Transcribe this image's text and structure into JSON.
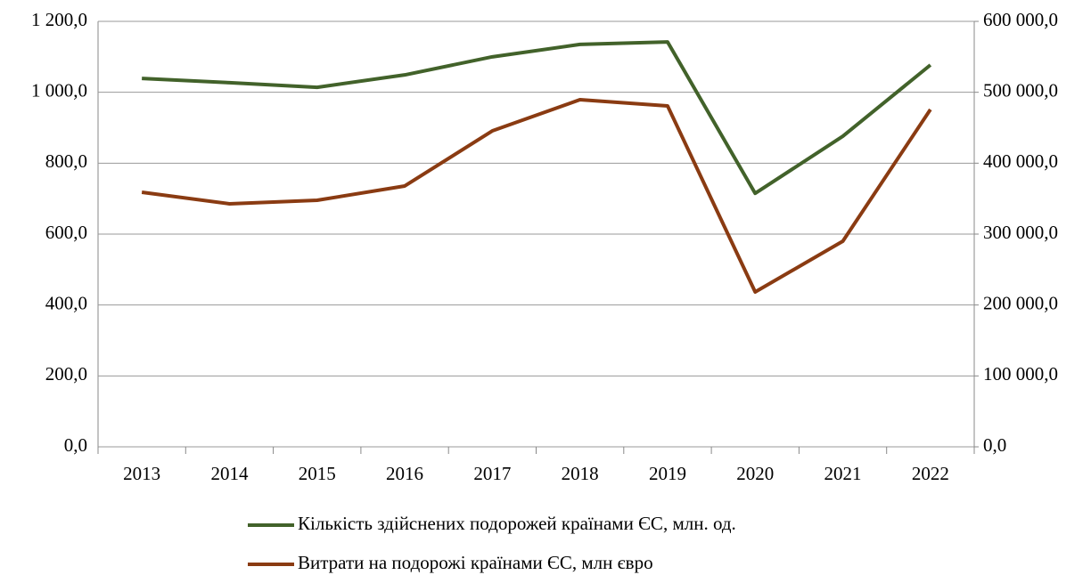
{
  "chart_data": {
    "type": "line",
    "categories": [
      "2013",
      "2014",
      "2015",
      "2016",
      "2017",
      "2018",
      "2019",
      "2020",
      "2021",
      "2022"
    ],
    "series": [
      {
        "name": "Кількість здійснених подорожей країнами ЄС, млн. од.",
        "color": "#42622a",
        "axis": "y",
        "values": [
          1039,
          1027,
          1014,
          1049,
          1100,
          1135,
          1142,
          715,
          876,
          1077
        ]
      },
      {
        "name": "Витрати на подорожі країнами ЄС, млн євро",
        "color": "#8a3b12",
        "axis": "y2",
        "values": [
          359000,
          342700,
          347700,
          367800,
          445600,
          489500,
          480800,
          218400,
          290000,
          475700
        ]
      }
    ],
    "ylim": [
      0,
      1200
    ],
    "yticks": [
      {
        "value": 0,
        "label": "0,0"
      },
      {
        "value": 200,
        "label": "200,0"
      },
      {
        "value": 400,
        "label": "400,0"
      },
      {
        "value": 600,
        "label": "600,0"
      },
      {
        "value": 800,
        "label": "800,0"
      },
      {
        "value": 1000,
        "label": "1 000,0"
      },
      {
        "value": 1200,
        "label": "1 200,0"
      }
    ],
    "y2lim": [
      0,
      600000
    ],
    "y2ticks": [
      {
        "value": 0,
        "label": "0,0"
      },
      {
        "value": 100000,
        "label": "100 000,0"
      },
      {
        "value": 200000,
        "label": "200 000,0"
      },
      {
        "value": 300000,
        "label": "300 000,0"
      },
      {
        "value": 400000,
        "label": "400 000,0"
      },
      {
        "value": 500000,
        "label": "500 000,0"
      },
      {
        "value": 600000,
        "label": "600 000,0"
      }
    ],
    "grid": true,
    "legend": "bottom"
  }
}
